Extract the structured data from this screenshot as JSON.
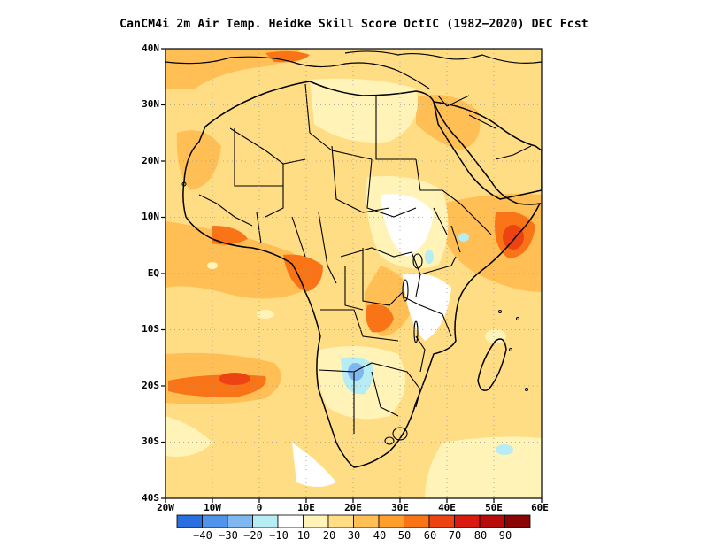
{
  "title": "CanCM4i  2m Air Temp. Heidke Skill Score OctIC (1982−2020) DEC Fcst",
  "lat_ticks": [
    "40N",
    "30N",
    "20N",
    "10N",
    "EQ",
    "10S",
    "20S",
    "30S",
    "40S"
  ],
  "lon_ticks": [
    "20W",
    "10W",
    "0",
    "10E",
    "20E",
    "30E",
    "40E",
    "50E",
    "60E"
  ],
  "colorbar": {
    "colors": [
      "#2a6fe0",
      "#4f94ea",
      "#7fb7f0",
      "#b6ecf4",
      "#ffffff",
      "#fff3b8",
      "#ffdd84",
      "#ffbf55",
      "#ff9e2a",
      "#f87417",
      "#ed4313",
      "#d91a10",
      "#b80b0b",
      "#8c0505"
    ],
    "labels": [
      "−40",
      "−30",
      "−20",
      "−10",
      "10",
      "20",
      "30",
      "40",
      "50",
      "60",
      "70",
      "80",
      "90"
    ]
  }
}
